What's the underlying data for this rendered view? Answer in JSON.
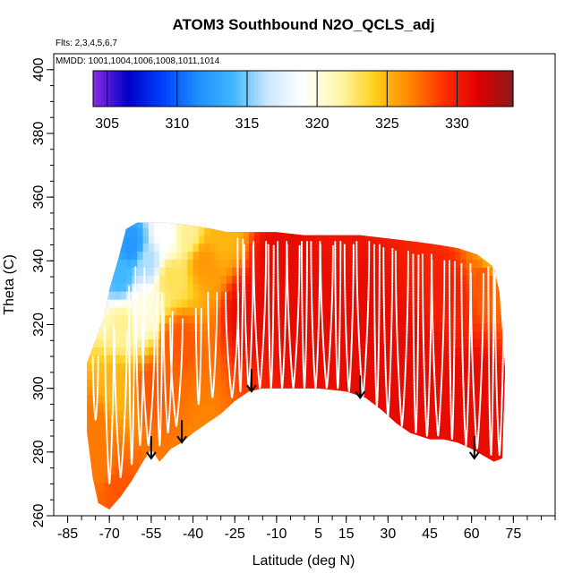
{
  "chart_data": {
    "type": "heatmap",
    "title": "ATOM3 Southbound N2O_QCLS_adj",
    "flights_note": "Flts: 2,3,4,5,6,7",
    "dates_note": "MMDD: 1001,1004,1006,1008,1011,1014",
    "xlabel": "Latitude (deg N)",
    "ylabel": "Theta (C)",
    "xlim": [
      -90,
      90
    ],
    "ylim": [
      260,
      405
    ],
    "x_ticks": [
      -85,
      -70,
      -55,
      -40,
      -25,
      -10,
      5,
      15,
      30,
      45,
      60,
      75
    ],
    "x_tick_labels": [
      "-85",
      "-70",
      "-55",
      "-40",
      "-25",
      "-10",
      "5",
      "15",
      "30",
      "45",
      "60",
      "75"
    ],
    "y_ticks": [
      260,
      280,
      300,
      320,
      340,
      360,
      380,
      400
    ],
    "y_tick_labels": [
      "260",
      "280",
      "300",
      "320",
      "340",
      "360",
      "380",
      "400"
    ],
    "colorbar": {
      "range": [
        304,
        334
      ],
      "ticks": [
        305,
        310,
        315,
        320,
        325,
        330
      ],
      "tick_labels": [
        "305",
        "310",
        "315",
        "320",
        "325",
        "330"
      ],
      "colors": [
        "#8a2be2",
        "#0000c8",
        "#0040ff",
        "#1e90ff",
        "#3fb8ff",
        "#cde8ff",
        "#ffffff",
        "#fff8b0",
        "#ffd21f",
        "#ff8c00",
        "#ff3000",
        "#e00000",
        "#8b1a1a"
      ]
    },
    "coverage": {
      "top_theta": [
        [
          -72,
          322
        ],
        [
          -70,
          331
        ],
        [
          -67,
          340
        ],
        [
          -64,
          350
        ],
        [
          -60,
          352
        ],
        [
          -50,
          352
        ],
        [
          -40,
          351
        ],
        [
          -33,
          350
        ],
        [
          -28,
          349
        ],
        [
          -20,
          349
        ],
        [
          -10,
          349
        ],
        [
          0,
          348
        ],
        [
          10,
          348
        ],
        [
          20,
          348
        ],
        [
          30,
          347
        ],
        [
          40,
          346
        ],
        [
          48,
          345
        ],
        [
          55,
          344
        ],
        [
          62,
          342
        ],
        [
          68,
          338
        ],
        [
          70,
          330
        ],
        [
          71,
          318
        ],
        [
          72,
          306
        ]
      ],
      "bottom_theta": [
        [
          72,
          305
        ],
        [
          71,
          278
        ],
        [
          68,
          277
        ],
        [
          64,
          279
        ],
        [
          60,
          281
        ],
        [
          55,
          283
        ],
        [
          50,
          284
        ],
        [
          45,
          284
        ],
        [
          38,
          286
        ],
        [
          33,
          289
        ],
        [
          28,
          293
        ],
        [
          22,
          297
        ],
        [
          15,
          299
        ],
        [
          5,
          300
        ],
        [
          -5,
          300
        ],
        [
          -10,
          300
        ],
        [
          -15,
          300
        ],
        [
          -20,
          299
        ],
        [
          -25,
          296
        ],
        [
          -30,
          292
        ],
        [
          -35,
          289
        ],
        [
          -40,
          286
        ],
        [
          -44,
          283
        ],
        [
          -48,
          281
        ],
        [
          -52,
          277
        ],
        [
          -55,
          281
        ],
        [
          -58,
          277
        ],
        [
          -62,
          271
        ],
        [
          -66,
          266
        ],
        [
          -70,
          262
        ],
        [
          -74,
          264
        ],
        [
          -76,
          272
        ],
        [
          -78,
          286
        ],
        [
          -78,
          308
        ]
      ]
    },
    "field": [
      {
        "lat": -76,
        "theta": 290,
        "value": 327
      },
      {
        "lat": -72,
        "theta": 275,
        "value": 327
      },
      {
        "lat": -68,
        "theta": 300,
        "value": 325
      },
      {
        "lat": -65,
        "theta": 320,
        "value": 322
      },
      {
        "lat": -66,
        "theta": 335,
        "value": 314
      },
      {
        "lat": -62,
        "theta": 345,
        "value": 312
      },
      {
        "lat": -56,
        "theta": 340,
        "value": 316
      },
      {
        "lat": -58,
        "theta": 325,
        "value": 320
      },
      {
        "lat": -50,
        "theta": 348,
        "value": 319
      },
      {
        "lat": -48,
        "theta": 335,
        "value": 323
      },
      {
        "lat": -42,
        "theta": 348,
        "value": 322
      },
      {
        "lat": -36,
        "theta": 340,
        "value": 326
      },
      {
        "lat": -30,
        "theta": 348,
        "value": 325
      },
      {
        "lat": -55,
        "theta": 300,
        "value": 328
      },
      {
        "lat": -45,
        "theta": 315,
        "value": 328
      },
      {
        "lat": -20,
        "theta": 325,
        "value": 331
      },
      {
        "lat": 0,
        "theta": 320,
        "value": 331
      },
      {
        "lat": 20,
        "theta": 320,
        "value": 331
      },
      {
        "lat": 40,
        "theta": 310,
        "value": 331
      },
      {
        "lat": 60,
        "theta": 300,
        "value": 331
      },
      {
        "lat": 65,
        "theta": 335,
        "value": 328
      },
      {
        "lat": 67,
        "theta": 340,
        "value": 325
      },
      {
        "lat": 52,
        "theta": 330,
        "value": 330
      },
      {
        "lat": -10,
        "theta": 340,
        "value": 331
      },
      {
        "lat": 30,
        "theta": 295,
        "value": 331
      },
      {
        "lat": -68,
        "theta": 270,
        "value": 328
      }
    ],
    "flight_tracks": [
      {
        "lat": -75,
        "bot": 290,
        "top": 310
      },
      {
        "lat": -70,
        "bot": 270,
        "top": 320
      },
      {
        "lat": -66,
        "bot": 272,
        "top": 318
      },
      {
        "lat": -62,
        "bot": 276,
        "top": 332
      },
      {
        "lat": -59,
        "bot": 282,
        "top": 338
      },
      {
        "lat": -56,
        "bot": 282,
        "top": 320
      },
      {
        "lat": -52,
        "bot": 282,
        "top": 330
      },
      {
        "lat": -49,
        "bot": 286,
        "top": 324
      },
      {
        "lat": -46,
        "bot": 288,
        "top": 322
      },
      {
        "lat": -38,
        "bot": 295,
        "top": 325
      },
      {
        "lat": -33,
        "bot": 297,
        "top": 330
      },
      {
        "lat": -26,
        "bot": 297,
        "top": 330
      },
      {
        "lat": -23,
        "bot": 299,
        "top": 347
      },
      {
        "lat": -20,
        "bot": 300,
        "top": 345
      },
      {
        "lat": -16,
        "bot": 300,
        "top": 346
      },
      {
        "lat": -12,
        "bot": 300,
        "top": 345
      },
      {
        "lat": -8,
        "bot": 300,
        "top": 346
      },
      {
        "lat": -4,
        "bot": 300,
        "top": 345
      },
      {
        "lat": 0,
        "bot": 300,
        "top": 346
      },
      {
        "lat": 4,
        "bot": 300,
        "top": 346
      },
      {
        "lat": 8,
        "bot": 300,
        "top": 345
      },
      {
        "lat": 12,
        "bot": 300,
        "top": 346
      },
      {
        "lat": 16,
        "bot": 299,
        "top": 345
      },
      {
        "lat": 21,
        "bot": 297,
        "top": 346
      },
      {
        "lat": 26,
        "bot": 294,
        "top": 345
      },
      {
        "lat": 30,
        "bot": 291,
        "top": 344
      },
      {
        "lat": 35,
        "bot": 288,
        "top": 343
      },
      {
        "lat": 40,
        "bot": 286,
        "top": 342
      },
      {
        "lat": 44,
        "bot": 285,
        "top": 342
      },
      {
        "lat": 48,
        "bot": 285,
        "top": 340
      },
      {
        "lat": 53,
        "bot": 284,
        "top": 340
      },
      {
        "lat": 58,
        "bot": 282,
        "top": 339
      },
      {
        "lat": 62,
        "bot": 281,
        "top": 336
      },
      {
        "lat": 67,
        "bot": 279,
        "top": 338
      },
      {
        "lat": 70,
        "bot": 279,
        "top": 336
      }
    ],
    "arrows": [
      {
        "lat": -55,
        "theta_top": 285,
        "theta_bottom": 278
      },
      {
        "lat": -44,
        "theta_top": 290,
        "theta_bottom": 283
      },
      {
        "lat": -19,
        "theta_top": 306,
        "theta_bottom": 299
      },
      {
        "lat": 20,
        "theta_top": 304,
        "theta_bottom": 297
      },
      {
        "lat": 61,
        "theta_top": 285,
        "theta_bottom": 278
      }
    ]
  }
}
